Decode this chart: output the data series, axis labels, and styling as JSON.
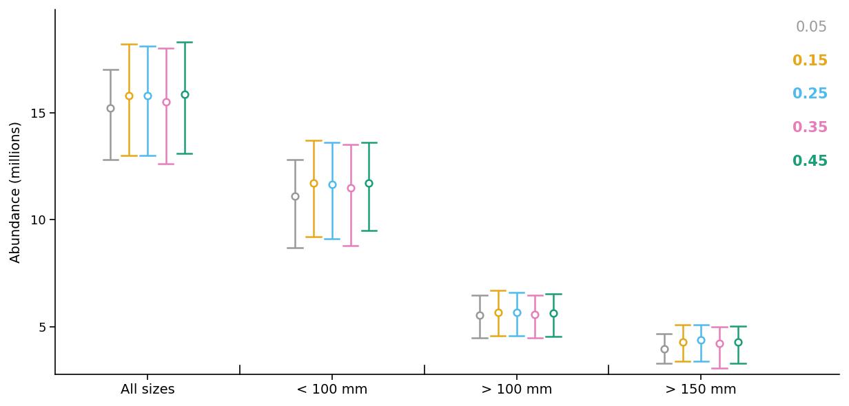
{
  "groups": [
    "All sizes",
    "< 100 mm",
    "> 100 mm",
    "> 150 mm"
  ],
  "series": [
    {
      "label": "0.05",
      "color": "#999999",
      "bold": false,
      "centers": [
        15.2,
        11.1,
        5.55,
        4.0
      ],
      "upper": [
        17.0,
        12.8,
        6.5,
        4.7
      ],
      "lower": [
        12.8,
        8.7,
        4.5,
        3.3
      ]
    },
    {
      "label": "0.15",
      "color": "#E6A817",
      "bold": true,
      "centers": [
        15.8,
        11.7,
        5.7,
        4.3
      ],
      "upper": [
        18.2,
        13.7,
        6.7,
        5.1
      ],
      "lower": [
        13.0,
        9.2,
        4.6,
        3.4
      ]
    },
    {
      "label": "0.25",
      "color": "#4DBBEE",
      "bold": true,
      "centers": [
        15.8,
        11.65,
        5.7,
        4.4
      ],
      "upper": [
        18.1,
        13.6,
        6.6,
        5.1
      ],
      "lower": [
        13.0,
        9.1,
        4.6,
        3.4
      ]
    },
    {
      "label": "0.35",
      "color": "#E87DBB",
      "bold": true,
      "centers": [
        15.5,
        11.5,
        5.6,
        4.25
      ],
      "upper": [
        18.0,
        13.5,
        6.5,
        5.0
      ],
      "lower": [
        12.6,
        8.8,
        4.5,
        3.1
      ]
    },
    {
      "label": "0.45",
      "color": "#1A9E78",
      "bold": true,
      "centers": [
        15.85,
        11.7,
        5.65,
        4.3
      ],
      "upper": [
        18.3,
        13.6,
        6.55,
        5.05
      ],
      "lower": [
        13.1,
        9.5,
        4.55,
        3.3
      ]
    }
  ],
  "group_centers": [
    1.5,
    3.5,
    5.5,
    7.5
  ],
  "group_offsets": [
    -0.4,
    -0.2,
    0.0,
    0.2,
    0.4
  ],
  "ylabel": "Abundance (millions)",
  "ylim": [
    2.8,
    19.8
  ],
  "yticks": [
    5,
    10,
    15
  ],
  "xlim": [
    0.5,
    9.0
  ],
  "background_color": "#ffffff",
  "marker_size": 7,
  "linewidth": 1.8,
  "cap_half": 0.08,
  "group_dividers": [
    2.5,
    4.5,
    6.5
  ],
  "legend_entries": [
    {
      "label": "0.05",
      "color": "#999999",
      "bold": false
    },
    {
      "label": "0.15",
      "color": "#E6A817",
      "bold": true
    },
    {
      "label": "0.25",
      "color": "#4DBBEE",
      "bold": true
    },
    {
      "label": "0.35",
      "color": "#E87DBB",
      "bold": true
    },
    {
      "label": "0.45",
      "color": "#1A9E78",
      "bold": true
    }
  ]
}
